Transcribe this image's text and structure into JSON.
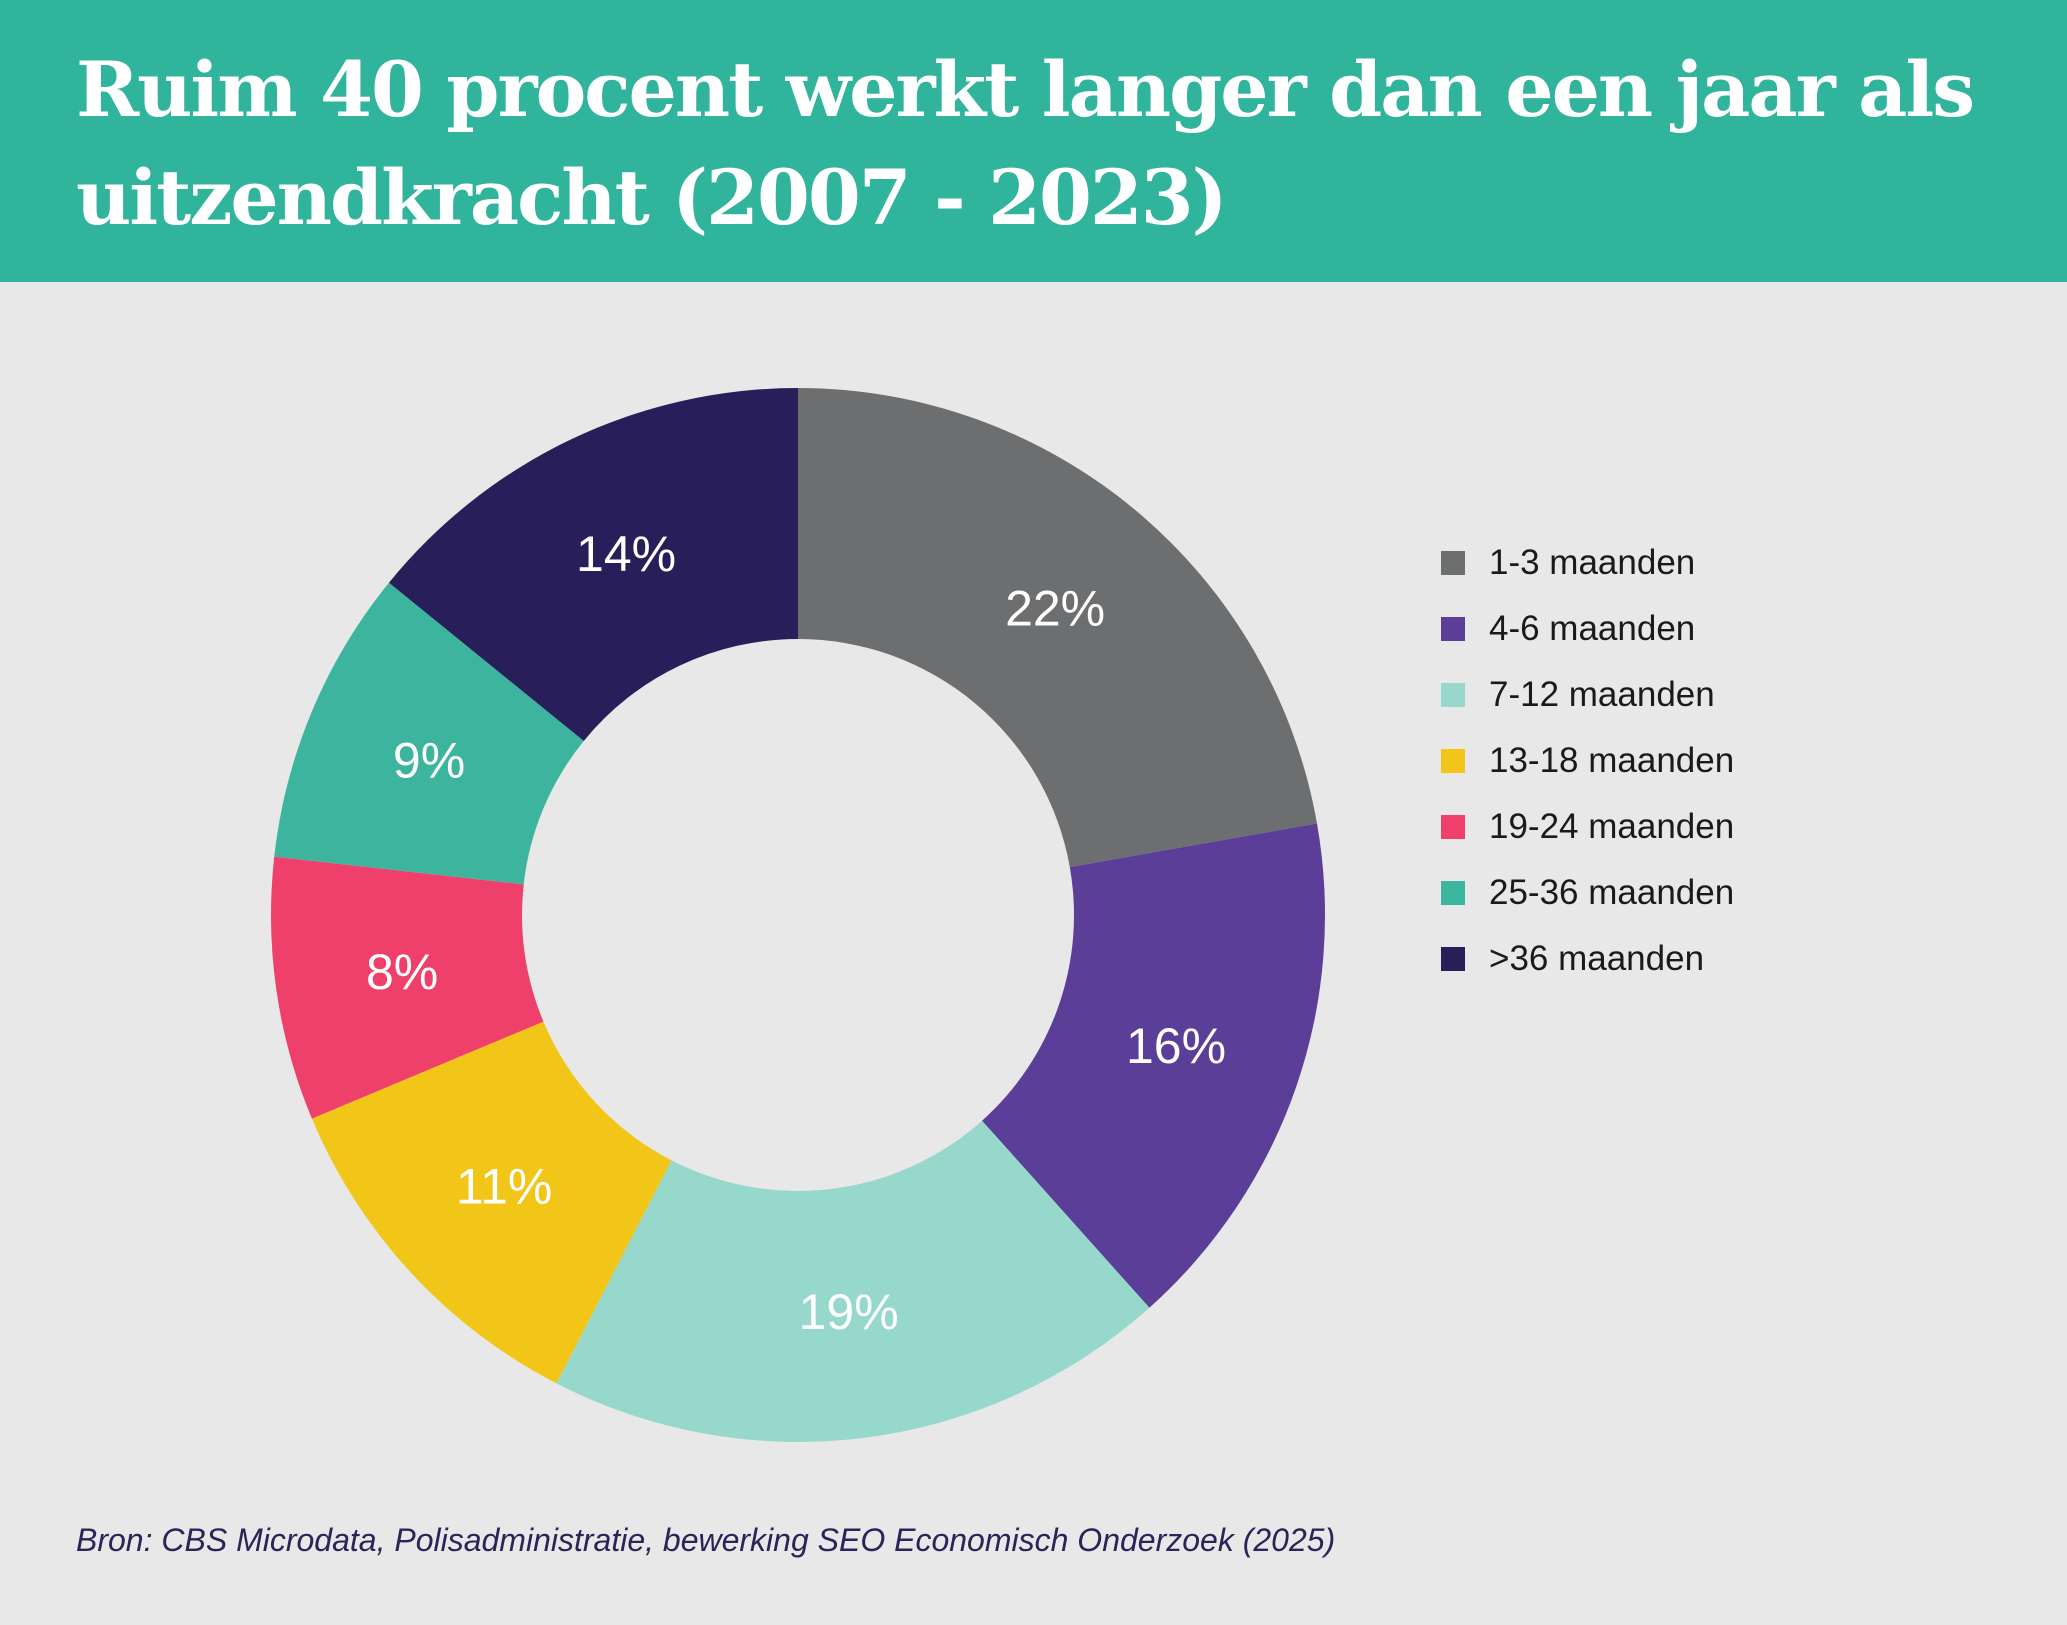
{
  "header": {
    "title": "Ruim 40 procent werkt langer dan een jaar als uitzendkracht (2007 - 2023)",
    "background_color": "#31b49c"
  },
  "chart_data": {
    "type": "pie",
    "style": "donut",
    "title": "Ruim 40 procent werkt langer dan een jaar als uitzendkracht (2007 - 2023)",
    "categories": [
      "1-3 maanden",
      "4-6 maanden",
      "7-12 maanden",
      "13-18 maanden",
      "19-24 maanden",
      "25-36 maanden",
      ">36 maanden"
    ],
    "values": [
      22,
      16,
      19,
      11,
      8,
      9,
      14
    ],
    "labels": [
      "22%",
      "16%",
      "19%",
      "11%",
      "8%",
      "9%",
      "14%"
    ],
    "colors": [
      "#6d6e70",
      "#5a3e98",
      "#96d8cc",
      "#f2c618",
      "#ef406b",
      "#3db59e",
      "#281f5a"
    ],
    "unit": "%",
    "legend_position": "right"
  },
  "source": "Bron: CBS Microdata, Polisadministratie, bewerking SEO Economisch Onderzoek (2025)"
}
